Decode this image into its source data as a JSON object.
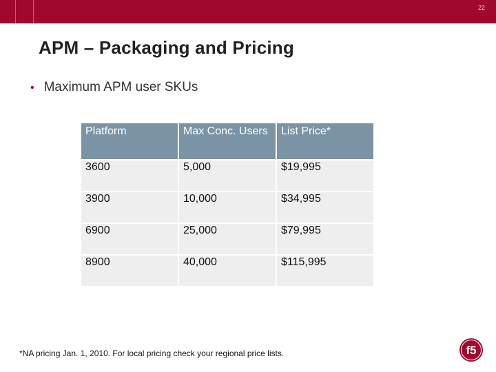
{
  "header": {
    "page_number": "22"
  },
  "slide": {
    "title": "APM – Packaging and Pricing",
    "bullet": "Maximum APM user SKUs",
    "footnote": "*NA pricing Jan. 1, 2010. For local pricing check your regional price lists."
  },
  "table": {
    "headers": [
      "Platform",
      "Max Conc. Users",
      "List Price*"
    ],
    "rows": [
      [
        "3600",
        "5,000",
        "$19,995"
      ],
      [
        "3900",
        "10,000",
        "$34,995"
      ],
      [
        "6900",
        "25,000",
        "$79,995"
      ],
      [
        "8900",
        "40,000",
        "$115,995"
      ]
    ]
  },
  "logo": {
    "text": "f5",
    "color": "#a1082e"
  },
  "colors": {
    "header_bar": "#a1082e",
    "table_header": "#7b94a5",
    "table_cell": "#eeeeee"
  }
}
